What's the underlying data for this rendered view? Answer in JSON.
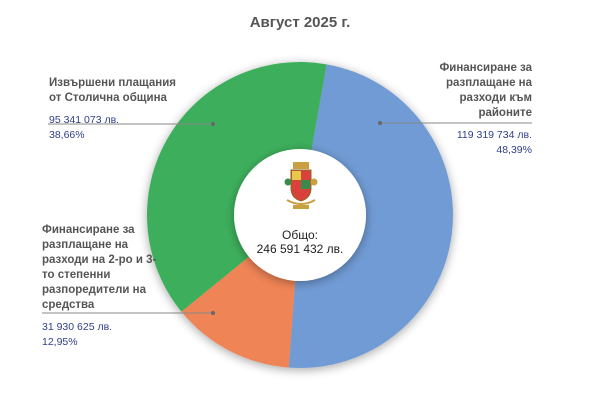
{
  "chart_data": {
    "type": "pie",
    "subtype": "donut",
    "title": "Август  2025 г.",
    "center_label": "Общо:",
    "center_value": "246 591 432 лв.",
    "slices": [
      {
        "label": "Финансиране за разплащане на разходи към районите",
        "value": 119319734,
        "value_text": "119 319 734 лв.",
        "percent": 48.39,
        "percent_text": "48,39%",
        "color": "#6f9bd4"
      },
      {
        "label": "Финансиране за разплащане на разходи на 2-ро и 3-то степенни разпоредители на средства",
        "value": 31930625,
        "value_text": "31 930 625 лв.",
        "percent": 12.95,
        "percent_text": "12,95%",
        "color": "#ef8457"
      },
      {
        "label": "Извършени плащания от Столична община",
        "value": 95341073,
        "value_text": "95 341 073 лв.",
        "percent": 38.66,
        "percent_text": "38,66%",
        "color": "#3daf5b"
      }
    ]
  }
}
